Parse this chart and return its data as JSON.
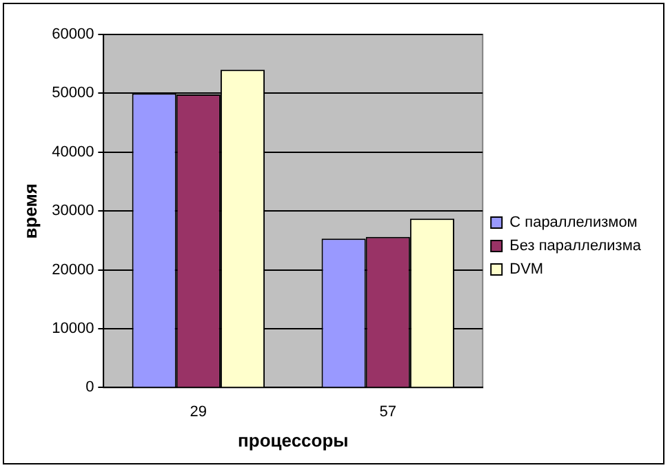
{
  "chart_data": {
    "type": "bar",
    "xlabel": "процессоры",
    "ylabel": "время",
    "categories": [
      "29",
      "57"
    ],
    "series": [
      {
        "name": "С параллелизмом",
        "color": "#9999ff",
        "values": [
          50000,
          25300
        ]
      },
      {
        "name": "Без параллелизма",
        "color": "#993366",
        "values": [
          49800,
          25600
        ]
      },
      {
        "name": "DVM",
        "color": "#ffffcc",
        "values": [
          54000,
          28700
        ]
      }
    ],
    "ylim": [
      0,
      60000
    ],
    "yticks": [
      0,
      10000,
      20000,
      30000,
      40000,
      50000,
      60000
    ],
    "grid": "y",
    "legend": "right"
  }
}
